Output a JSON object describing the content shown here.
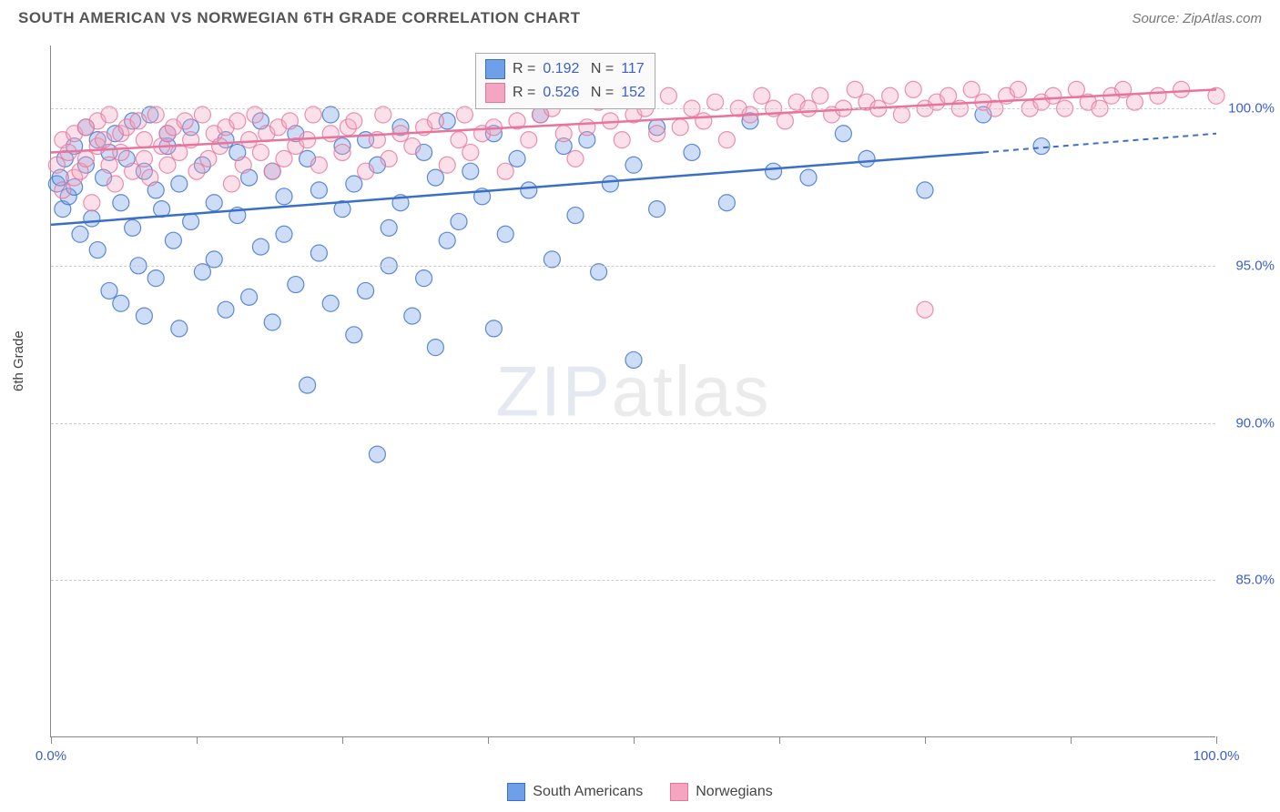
{
  "header": {
    "title": "SOUTH AMERICAN VS NORWEGIAN 6TH GRADE CORRELATION CHART",
    "source": "Source: ZipAtlas.com"
  },
  "chart": {
    "type": "scatter",
    "ylabel": "6th Grade",
    "xlim": [
      0,
      100
    ],
    "ylim": [
      80,
      102
    ],
    "xtick_positions": [
      0,
      12.5,
      25,
      37.5,
      50,
      62.5,
      75,
      87.5,
      100
    ],
    "xtick_labels": {
      "0": "0.0%",
      "100": "100.0%"
    },
    "ytick_positions": [
      85,
      90,
      95,
      100
    ],
    "ytick_labels": [
      "85.0%",
      "90.0%",
      "95.0%",
      "100.0%"
    ],
    "grid_color": "#cccccc",
    "axis_color": "#888888",
    "label_color": "#3a5fcd",
    "marker_radius": 9,
    "marker_opacity": 0.35,
    "series": [
      {
        "name": "South Americans",
        "color_fill": "#6f9fe8",
        "color_stroke": "#3a6fc8",
        "R": "0.192",
        "N": "117",
        "trend": {
          "x1": 0,
          "y1": 96.3,
          "x2": 80,
          "y2": 98.6,
          "x2_dash": 100,
          "y2_dash": 99.2
        },
        "points": [
          [
            0.5,
            97.6
          ],
          [
            0.8,
            97.8
          ],
          [
            1,
            96.8
          ],
          [
            1.2,
            98.4
          ],
          [
            1.5,
            97.2
          ],
          [
            2,
            97.5
          ],
          [
            2,
            98.8
          ],
          [
            2.5,
            96.0
          ],
          [
            3,
            98.2
          ],
          [
            3,
            99.4
          ],
          [
            3.5,
            96.5
          ],
          [
            4,
            99.0
          ],
          [
            4,
            95.5
          ],
          [
            4.5,
            97.8
          ],
          [
            5,
            98.6
          ],
          [
            5,
            94.2
          ],
          [
            5.5,
            99.2
          ],
          [
            6,
            97.0
          ],
          [
            6,
            93.8
          ],
          [
            6.5,
            98.4
          ],
          [
            7,
            99.6
          ],
          [
            7,
            96.2
          ],
          [
            7.5,
            95.0
          ],
          [
            8,
            98.0
          ],
          [
            8,
            93.4
          ],
          [
            8.5,
            99.8
          ],
          [
            9,
            97.4
          ],
          [
            9,
            94.6
          ],
          [
            9.5,
            96.8
          ],
          [
            10,
            98.8
          ],
          [
            10,
            99.2
          ],
          [
            10.5,
            95.8
          ],
          [
            11,
            97.6
          ],
          [
            11,
            93.0
          ],
          [
            12,
            99.4
          ],
          [
            12,
            96.4
          ],
          [
            13,
            98.2
          ],
          [
            13,
            94.8
          ],
          [
            14,
            97.0
          ],
          [
            14,
            95.2
          ],
          [
            15,
            99.0
          ],
          [
            15,
            93.6
          ],
          [
            16,
            98.6
          ],
          [
            16,
            96.6
          ],
          [
            17,
            97.8
          ],
          [
            17,
            94.0
          ],
          [
            18,
            99.6
          ],
          [
            18,
            95.6
          ],
          [
            19,
            98.0
          ],
          [
            19,
            93.2
          ],
          [
            20,
            97.2
          ],
          [
            20,
            96.0
          ],
          [
            21,
            99.2
          ],
          [
            21,
            94.4
          ],
          [
            22,
            98.4
          ],
          [
            22,
            91.2
          ],
          [
            23,
            97.4
          ],
          [
            23,
            95.4
          ],
          [
            24,
            99.8
          ],
          [
            24,
            93.8
          ],
          [
            25,
            96.8
          ],
          [
            25,
            98.8
          ],
          [
            26,
            97.6
          ],
          [
            26,
            92.8
          ],
          [
            27,
            99.0
          ],
          [
            27,
            94.2
          ],
          [
            28,
            98.2
          ],
          [
            28,
            89.0
          ],
          [
            29,
            96.2
          ],
          [
            29,
            95.0
          ],
          [
            30,
            99.4
          ],
          [
            30,
            97.0
          ],
          [
            31,
            93.4
          ],
          [
            32,
            98.6
          ],
          [
            32,
            94.6
          ],
          [
            33,
            97.8
          ],
          [
            33,
            92.4
          ],
          [
            34,
            99.6
          ],
          [
            34,
            95.8
          ],
          [
            35,
            96.4
          ],
          [
            36,
            98.0
          ],
          [
            37,
            97.2
          ],
          [
            38,
            99.2
          ],
          [
            38,
            93.0
          ],
          [
            39,
            96.0
          ],
          [
            40,
            98.4
          ],
          [
            41,
            97.4
          ],
          [
            42,
            99.8
          ],
          [
            43,
            95.2
          ],
          [
            44,
            98.8
          ],
          [
            45,
            96.6
          ],
          [
            46,
            99.0
          ],
          [
            47,
            94.8
          ],
          [
            48,
            97.6
          ],
          [
            50,
            98.2
          ],
          [
            50,
            92.0
          ],
          [
            52,
            99.4
          ],
          [
            52,
            96.8
          ],
          [
            55,
            98.6
          ],
          [
            58,
            97.0
          ],
          [
            60,
            99.6
          ],
          [
            62,
            98.0
          ],
          [
            65,
            97.8
          ],
          [
            68,
            99.2
          ],
          [
            70,
            98.4
          ],
          [
            75,
            97.4
          ],
          [
            80,
            99.8
          ],
          [
            85,
            98.8
          ]
        ]
      },
      {
        "name": "Norwegians",
        "color_fill": "#f4a6c0",
        "color_stroke": "#e8749c",
        "R": "0.526",
        "N": "152",
        "trend": {
          "x1": 0,
          "y1": 98.6,
          "x2": 100,
          "y2": 100.6
        },
        "points": [
          [
            0.5,
            98.2
          ],
          [
            1,
            97.4
          ],
          [
            1,
            99.0
          ],
          [
            1.5,
            98.6
          ],
          [
            2,
            99.2
          ],
          [
            2,
            97.8
          ],
          [
            2.5,
            98.0
          ],
          [
            3,
            99.4
          ],
          [
            3,
            98.4
          ],
          [
            3.5,
            97.0
          ],
          [
            4,
            99.6
          ],
          [
            4,
            98.8
          ],
          [
            4.5,
            99.0
          ],
          [
            5,
            98.2
          ],
          [
            5,
            99.8
          ],
          [
            5.5,
            97.6
          ],
          [
            6,
            99.2
          ],
          [
            6,
            98.6
          ],
          [
            6.5,
            99.4
          ],
          [
            7,
            98.0
          ],
          [
            7.5,
            99.6
          ],
          [
            8,
            98.4
          ],
          [
            8,
            99.0
          ],
          [
            8.5,
            97.8
          ],
          [
            9,
            99.8
          ],
          [
            9.5,
            98.8
          ],
          [
            10,
            99.2
          ],
          [
            10,
            98.2
          ],
          [
            10.5,
            99.4
          ],
          [
            11,
            98.6
          ],
          [
            11.5,
            99.6
          ],
          [
            12,
            99.0
          ],
          [
            12.5,
            98.0
          ],
          [
            13,
            99.8
          ],
          [
            13.5,
            98.4
          ],
          [
            14,
            99.2
          ],
          [
            14.5,
            98.8
          ],
          [
            15,
            99.4
          ],
          [
            15.5,
            97.6
          ],
          [
            16,
            99.6
          ],
          [
            16.5,
            98.2
          ],
          [
            17,
            99.0
          ],
          [
            17.5,
            99.8
          ],
          [
            18,
            98.6
          ],
          [
            18.5,
            99.2
          ],
          [
            19,
            98.0
          ],
          [
            19.5,
            99.4
          ],
          [
            20,
            98.4
          ],
          [
            20.5,
            99.6
          ],
          [
            21,
            98.8
          ],
          [
            22,
            99.0
          ],
          [
            22.5,
            99.8
          ],
          [
            23,
            98.2
          ],
          [
            24,
            99.2
          ],
          [
            25,
            98.6
          ],
          [
            25.5,
            99.4
          ],
          [
            26,
            99.6
          ],
          [
            27,
            98.0
          ],
          [
            28,
            99.0
          ],
          [
            28.5,
            99.8
          ],
          [
            29,
            98.4
          ],
          [
            30,
            99.2
          ],
          [
            31,
            98.8
          ],
          [
            32,
            99.4
          ],
          [
            33,
            99.6
          ],
          [
            34,
            98.2
          ],
          [
            35,
            99.0
          ],
          [
            35.5,
            99.8
          ],
          [
            36,
            98.6
          ],
          [
            37,
            99.2
          ],
          [
            38,
            99.4
          ],
          [
            39,
            98.0
          ],
          [
            40,
            99.6
          ],
          [
            41,
            99.0
          ],
          [
            42,
            99.8
          ],
          [
            43,
            100.0
          ],
          [
            44,
            99.2
          ],
          [
            45,
            98.4
          ],
          [
            46,
            99.4
          ],
          [
            47,
            100.2
          ],
          [
            48,
            99.6
          ],
          [
            49,
            99.0
          ],
          [
            50,
            99.8
          ],
          [
            51,
            100.0
          ],
          [
            52,
            99.2
          ],
          [
            53,
            100.4
          ],
          [
            54,
            99.4
          ],
          [
            55,
            100.0
          ],
          [
            56,
            99.6
          ],
          [
            57,
            100.2
          ],
          [
            58,
            99.0
          ],
          [
            59,
            100.0
          ],
          [
            60,
            99.8
          ],
          [
            61,
            100.4
          ],
          [
            62,
            100.0
          ],
          [
            63,
            99.6
          ],
          [
            64,
            100.2
          ],
          [
            65,
            100.0
          ],
          [
            66,
            100.4
          ],
          [
            67,
            99.8
          ],
          [
            68,
            100.0
          ],
          [
            69,
            100.6
          ],
          [
            70,
            100.2
          ],
          [
            71,
            100.0
          ],
          [
            72,
            100.4
          ],
          [
            73,
            99.8
          ],
          [
            74,
            100.6
          ],
          [
            75,
            100.0
          ],
          [
            76,
            100.2
          ],
          [
            77,
            100.4
          ],
          [
            78,
            100.0
          ],
          [
            79,
            100.6
          ],
          [
            80,
            100.2
          ],
          [
            81,
            100.0
          ],
          [
            82,
            100.4
          ],
          [
            83,
            100.6
          ],
          [
            84,
            100.0
          ],
          [
            85,
            100.2
          ],
          [
            86,
            100.4
          ],
          [
            87,
            100.0
          ],
          [
            88,
            100.6
          ],
          [
            89,
            100.2
          ],
          [
            90,
            100.0
          ],
          [
            91,
            100.4
          ],
          [
            92,
            100.6
          ],
          [
            93,
            100.2
          ],
          [
            95,
            100.4
          ],
          [
            97,
            100.6
          ],
          [
            100,
            100.4
          ],
          [
            75,
            93.6
          ]
        ]
      }
    ]
  },
  "legend_box": {
    "rows": [
      {
        "swatch_fill": "#6f9fe8",
        "swatch_stroke": "#3a6fc8",
        "R_label": "R =",
        "R": "0.192",
        "N_label": "N =",
        "N": "117"
      },
      {
        "swatch_fill": "#f4a6c0",
        "swatch_stroke": "#e8749c",
        "R_label": "R =",
        "R": "0.526",
        "N_label": "N =",
        "N": "152"
      }
    ]
  },
  "bottom_legend": [
    {
      "swatch_fill": "#6f9fe8",
      "swatch_stroke": "#3a6fc8",
      "label": "South Americans"
    },
    {
      "swatch_fill": "#f4a6c0",
      "swatch_stroke": "#e8749c",
      "label": "Norwegians"
    }
  ],
  "watermark": {
    "part1": "ZIP",
    "part2": "atlas"
  }
}
